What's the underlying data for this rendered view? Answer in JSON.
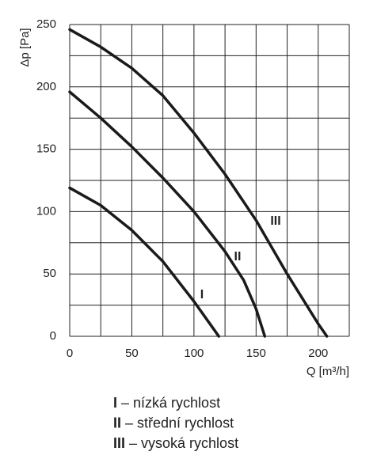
{
  "chart_data": {
    "type": "line",
    "y_label": "Δp [Pa]",
    "x_label": "Q [m³/h]",
    "xlim": [
      0,
      225
    ],
    "ylim": [
      0,
      250
    ],
    "xticks": [
      0,
      50,
      100,
      150,
      200
    ],
    "yticks": [
      0,
      50,
      100,
      150,
      200,
      250
    ],
    "xgrid": [
      0,
      25,
      50,
      75,
      100,
      125,
      150,
      175,
      200,
      225
    ],
    "ygrid": [
      0,
      25,
      50,
      75,
      100,
      125,
      150,
      175,
      200,
      225,
      250
    ],
    "grid": true,
    "series": [
      {
        "name": "I",
        "description": "– nízká rychlost",
        "color": "#1a1a1a",
        "x": [
          0,
          25,
          50,
          75,
          100,
          120
        ],
        "values": [
          119,
          105,
          85,
          60,
          28,
          0
        ]
      },
      {
        "name": "II",
        "description": "– střední rychlost",
        "color": "#1a1a1a",
        "x": [
          0,
          25,
          50,
          75,
          100,
          125,
          140,
          150,
          157
        ],
        "values": [
          196,
          175,
          152,
          127,
          100,
          68,
          45,
          22,
          0
        ]
      },
      {
        "name": "III",
        "description": "– vysoká rychlost",
        "color": "#1a1a1a",
        "x": [
          0,
          25,
          50,
          75,
          100,
          125,
          150,
          175,
          200,
          207
        ],
        "values": [
          246,
          232,
          215,
          193,
          163,
          130,
          93,
          50,
          10,
          0
        ]
      }
    ]
  }
}
